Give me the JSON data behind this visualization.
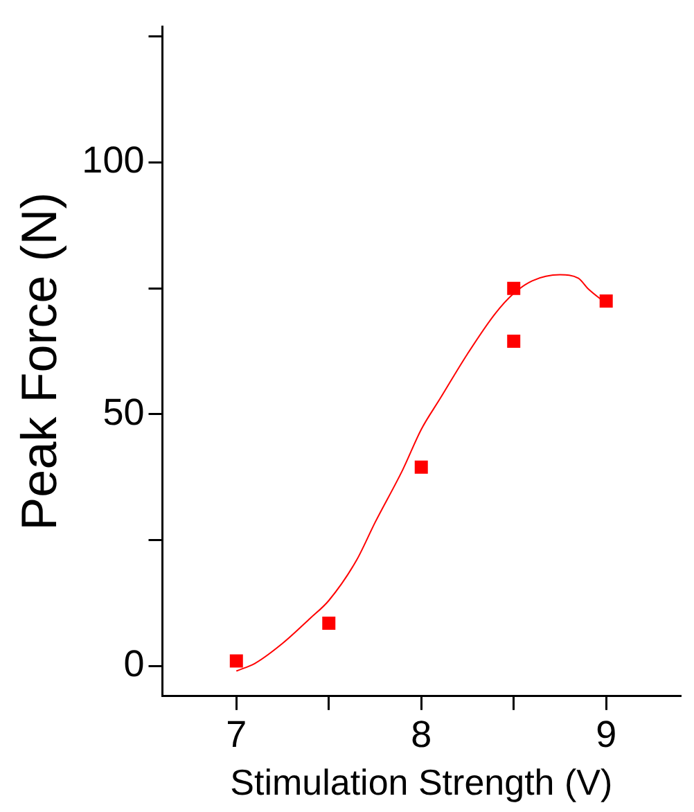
{
  "chart_data": {
    "type": "scatter",
    "xlabel": "Stimulation Strength (V)",
    "ylabel": "Peak Force (N)",
    "xlim": [
      6.6,
      9.4
    ],
    "xticks": [
      7,
      {
        "value": 7.5,
        "label": null
      },
      8,
      {
        "value": 8.5,
        "label": null
      },
      9
    ],
    "ylim": [
      -6,
      127
    ],
    "yticks": [
      0,
      {
        "value": 25,
        "label": null
      },
      50,
      {
        "value": 75,
        "label": null
      },
      100,
      {
        "value": 125,
        "label": null
      }
    ],
    "grid": false,
    "legend": false,
    "marker": "square",
    "series": [
      {
        "type": "scatter",
        "color": "#ff0000",
        "x": [
          7,
          7.5,
          8,
          8.5,
          8.5,
          9
        ],
        "values": [
          1,
          8.5,
          39.5,
          75,
          64.5,
          72.5
        ]
      },
      {
        "type": "line",
        "color": "#ff0000",
        "marker": "none",
        "x": [
          7,
          7.1,
          7.25,
          7.4,
          7.5,
          7.65,
          7.75,
          7.9,
          8,
          8.1,
          8.25,
          8.4,
          8.5,
          8.6,
          8.75,
          8.85,
          8.9,
          9
        ],
        "values": [
          -1,
          0.5,
          4.5,
          9.5,
          13,
          21,
          28.5,
          39,
          47,
          53,
          62,
          70,
          74,
          76.5,
          77.7,
          77,
          75,
          72
        ]
      }
    ]
  }
}
